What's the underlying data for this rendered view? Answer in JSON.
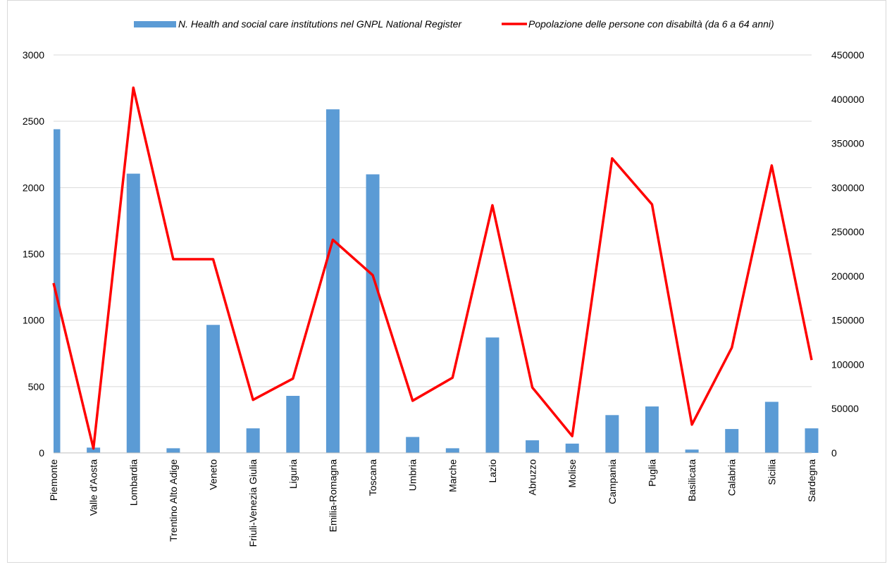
{
  "chart_data": {
    "type": "bar+line",
    "title": "",
    "categories": [
      "Piemonte",
      "Valle d'Aosta",
      "Lombardia",
      "Trentino Alto Adige",
      "Veneto",
      "Friuli-Venezia Giulia",
      "Liguria",
      "Emilia-Romagna",
      "Toscana",
      "Umbria",
      "Marche",
      "Lazio",
      "Abruzzo",
      "Molise",
      "Campania",
      "Puglia",
      "Basilicata",
      "Calabria",
      "Sicilia",
      "Sardegna"
    ],
    "series": [
      {
        "name": "N. Health and social care institutions nel GNPL National Register",
        "type": "bar",
        "axis": "left",
        "color": "#5B9BD5",
        "values": [
          2440,
          40,
          2105,
          35,
          965,
          185,
          430,
          2590,
          2100,
          120,
          35,
          870,
          95,
          70,
          285,
          350,
          25,
          180,
          385,
          185
        ]
      },
      {
        "name": "Popolazione delle persone con disabiltà  (da 6 a 64 anni)",
        "type": "line",
        "axis": "right",
        "color": "#FF0000",
        "values": [
          192000,
          5000,
          413000,
          219000,
          219000,
          60000,
          84000,
          241000,
          201000,
          59000,
          85000,
          280000,
          74000,
          19000,
          333000,
          281000,
          32000,
          119000,
          325000,
          105000
        ]
      }
    ],
    "y_left": {
      "min": 0,
      "max": 3000,
      "ticks": [
        "0",
        "500",
        "1000",
        "1500",
        "2000",
        "2500",
        "3000"
      ]
    },
    "y_right": {
      "min": 0,
      "max": 450000,
      "ticks": [
        "0",
        "50000",
        "100000",
        "150000",
        "200000",
        "250000",
        "300000",
        "350000",
        "400000",
        "450000"
      ]
    },
    "grid": true,
    "legend_position": "top"
  }
}
